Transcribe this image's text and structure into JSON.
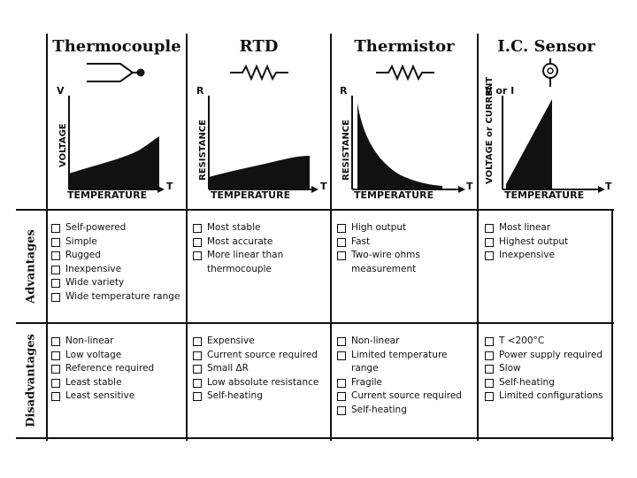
{
  "columns": [
    {
      "title": "Thermocouple",
      "symbol": "thermocouple-junction-icon",
      "y_axis": "VOLTAGE",
      "y_top": "V",
      "x_axis": "TEMPERATURE",
      "x_end": "T",
      "advantages": [
        "Self-powered",
        "Simple",
        "Rugged",
        "Inexpensive",
        "Wide variety",
        "Wide temperature range"
      ],
      "disadvantages": [
        "Non-linear",
        "Low voltage",
        "Reference required",
        "Least stable",
        "Least sensitive"
      ]
    },
    {
      "title": "RTD",
      "symbol": "resistor-icon",
      "y_axis": "RESISTANCE",
      "y_top": "R",
      "x_axis": "TEMPERATURE",
      "x_end": "T",
      "advantages": [
        "Most stable",
        "Most accurate",
        "More linear than thermocouple"
      ],
      "disadvantages": [
        "Expensive",
        "Current source required",
        "Small ΔR",
        "Low absolute resistance",
        "Self-heating"
      ]
    },
    {
      "title": "Thermistor",
      "symbol": "resistor-icon",
      "y_axis": "RESISTANCE",
      "y_top": "R",
      "x_axis": "TEMPERATURE",
      "x_end": "T",
      "advantages": [
        "High output",
        "Fast",
        "Two-wire ohms measurement"
      ],
      "disadvantages": [
        "Non-linear",
        "Limited temperature range",
        "Fragile",
        "Current source required",
        "Self-heating"
      ]
    },
    {
      "title": "I.C. Sensor",
      "symbol": "ic-sensor-icon",
      "y_axis": "VOLTAGE or CURRENT",
      "y_top": "V or I",
      "x_axis": "TEMPERATURE",
      "x_end": "T",
      "advantages": [
        "Most linear",
        "Highest output",
        "Inexpensive"
      ],
      "disadvantages": [
        "T <200°C",
        "Power supply required",
        "Slow",
        "Self-heating",
        "Limited configurations"
      ]
    }
  ],
  "rows": {
    "advantages": "Advantages",
    "disadvantages": "Disadvantages"
  }
}
